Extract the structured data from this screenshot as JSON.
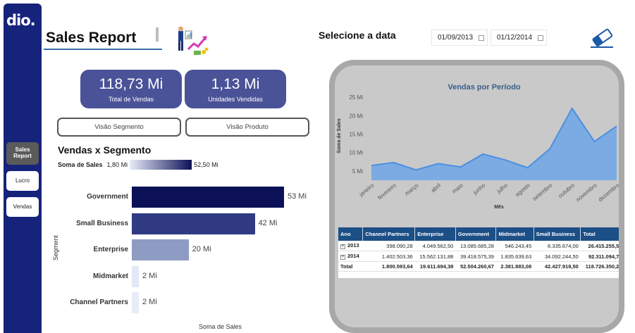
{
  "sidebar": {
    "logo": "dio.",
    "items": [
      {
        "label": "Sales Report",
        "active": true
      },
      {
        "label": "Lucro",
        "active": false
      },
      {
        "label": "Vendas",
        "active": false
      }
    ]
  },
  "header": {
    "title": "Sales Report",
    "date_label": "Selecione a data",
    "date_start": "01/09/2013",
    "date_end": "01/12/2014"
  },
  "kpis": [
    {
      "value": "118,73 Mi",
      "label": "Total de Vendas"
    },
    {
      "value": "1,13 Mi",
      "label": "Unidades Vendidas"
    }
  ],
  "view_buttons": [
    "Visão Segmento",
    "Visão Produto"
  ],
  "segment_chart": {
    "title": "Vendas x Segmento",
    "legend_label": "Soma de  Sales",
    "legend_min": "1,80 Mi",
    "legend_max": "52,50 Mi",
    "ylabel": "Segment",
    "xlabel": "Soma de Sales",
    "colors": [
      "#0c1157",
      "#313b84",
      "#8e9cc4",
      "#e3e8f6",
      "#e7ecf8"
    ]
  },
  "line_chart": {
    "title": "Vendas por Período",
    "ylabel": "Soma de Sales",
    "xlabel": "Mês",
    "color": "#4a90e2"
  },
  "chart_data": [
    {
      "type": "bar",
      "orientation": "horizontal",
      "categories": [
        "Government",
        "Small Business",
        "Enterprise",
        "Midmarket",
        "Channel Partners"
      ],
      "values": [
        52.5,
        42.43,
        19.61,
        2.38,
        1.8
      ],
      "value_labels": [
        "53 Mi",
        "42 Mi",
        "20 Mi",
        "2 Mi",
        "2 Mi"
      ],
      "title": "Vendas x Segmento",
      "xlabel": "Soma de Sales",
      "ylabel": "Segment"
    },
    {
      "type": "area",
      "categories": [
        "janeiro",
        "fevereiro",
        "março",
        "abril",
        "maio",
        "junho",
        "julho",
        "agosto",
        "setembro",
        "outubro",
        "novembro",
        "dezembro"
      ],
      "values": [
        6.5,
        7.3,
        5.3,
        7.0,
        6.1,
        9.6,
        8.0,
        5.9,
        11.0,
        22.0,
        13.0,
        17.2
      ],
      "y_ticks": [
        "5 Mi",
        "10 Mi",
        "15 Mi",
        "20 Mi",
        "25 Mi"
      ],
      "ylim": [
        2.5,
        26
      ],
      "title": "Vendas por Período",
      "xlabel": "Mês",
      "ylabel": "Soma de Sales"
    }
  ],
  "table": {
    "headers": [
      "Ano",
      "Channel Partners",
      "Enterprise",
      "Government",
      "Midmarket",
      "Small Business",
      "Total"
    ],
    "rows": [
      [
        "2013",
        "398.090,28",
        "4.049.562,50",
        "13.085.685,28",
        "546.243,45",
        "8.335.674,00",
        "26.415.255,51"
      ],
      [
        "2014",
        "1.402.503,36",
        "15.562.131,88",
        "39.418.575,39",
        "1.835.639,63",
        "34.092.244,50",
        "92.311.094,75"
      ]
    ],
    "total": [
      "Total",
      "1.800.593,64",
      "19.611.694,38",
      "52.504.260,67",
      "2.381.883,08",
      "42.427.918,50",
      "118.726.350,26"
    ]
  }
}
